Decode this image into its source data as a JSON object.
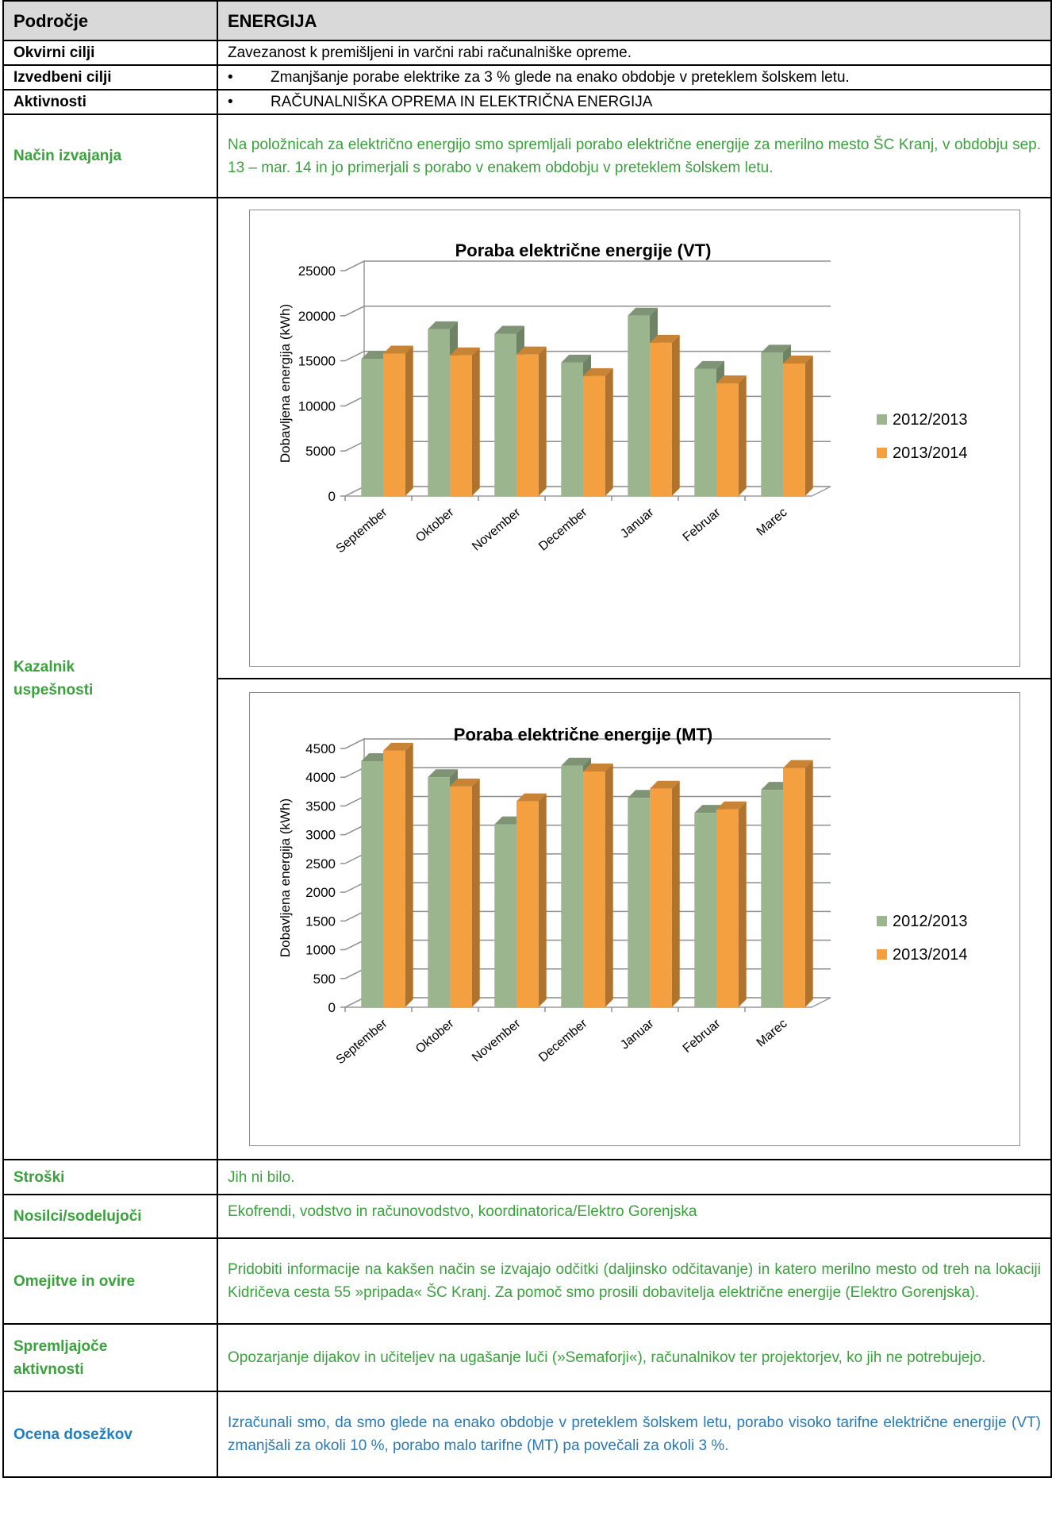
{
  "header": {
    "col1": "Področje",
    "col2": "ENERGIJA"
  },
  "rows": {
    "okvirni": {
      "label": "Okvirni cilji",
      "text": "Zavezanost k premišljeni in varčni rabi računalniške opreme."
    },
    "izvedbeni": {
      "label": "Izvedbeni cilji",
      "bullet": "•",
      "text": "Zmanjšanje porabe elektrike za 3 % glede na enako obdobje v preteklem šolskem letu."
    },
    "aktivnosti": {
      "label": "Aktivnosti",
      "bullet": "•",
      "text": "RAČUNALNIŠKA OPREMA IN ELEKTRIČNA ENERGIJA"
    },
    "nacin": {
      "label": "Način izvajanja",
      "text": "Na položnicah za električno energijo smo spremljali porabo električne energije za merilno mesto ŠC Kranj, v obdobju sep. 13 – mar. 14 in jo primerjali s porabo v enakem obdobju v preteklem šolskem letu."
    },
    "kazalnik": {
      "label_line1": "Kazalnik",
      "label_line2": "uspešnosti"
    },
    "stroski": {
      "label": "Stroški",
      "text": "Jih ni bilo."
    },
    "nosilci": {
      "label": "Nosilci/sodelujoči",
      "text": "Ekofrendi, vodstvo in računovodstvo, koordinatorica/Elektro Gorenjska"
    },
    "omejitve": {
      "label": "Omejitve in ovire",
      "text": "Pridobiti informacije na kakšen način se izvajajo odčitki (daljinsko odčitavanje) in katero merilno mesto od treh na lokaciji Kidričeva cesta 55 »pripada« ŠC Kranj. Za pomoč smo prosili dobavitelja električne energije (Elektro Gorenjska)."
    },
    "spremljajoce": {
      "label_line1": "Spremljajoče",
      "label_line2": "aktivnosti",
      "text": "Opozarjanje dijakov in učiteljev na ugašanje luči (»Semaforji«), računalnikov ter projektorjev, ko jih ne potrebujejo."
    },
    "ocena": {
      "label": "Ocena dosežkov",
      "text": "Izračunali smo, da smo glede na enako obdobje v preteklem šolskem letu, porabo visoko tarifne električne energije (VT) zmanjšali za okoli 10 %, porabo malo tarifne (MT) pa povečali za okoli 3 %."
    }
  },
  "colors": {
    "series1": "#9bb58e",
    "series2": "#f4a040",
    "label_green": "#3aa23c",
    "label_blue": "#1f7fc4",
    "header_bg": "#d9d9d9"
  },
  "chart_data": [
    {
      "type": "bar",
      "title": "Poraba električne energije (VT)",
      "ylabel": "Dobavljena energija (kWh)",
      "xlabel": "",
      "categories": [
        "September",
        "Oktober",
        "November",
        "December",
        "Januar",
        "Februar",
        "Marec"
      ],
      "series": [
        {
          "name": "2012/2013",
          "values": [
            15200,
            18500,
            18000,
            14800,
            20000,
            14100,
            15900
          ]
        },
        {
          "name": "2013/2014",
          "values": [
            15800,
            15600,
            15700,
            13300,
            17000,
            12500,
            14700
          ]
        }
      ],
      "ylim": [
        0,
        25000
      ],
      "yticks": [
        0,
        5000,
        10000,
        15000,
        20000,
        25000
      ],
      "grid": true,
      "legend": "right",
      "style": "3d"
    },
    {
      "type": "bar",
      "title": "Poraba električne energije (MT)",
      "ylabel": "Dobavljena energija (kWh)",
      "xlabel": "",
      "categories": [
        "September",
        "Oktober",
        "November",
        "December",
        "Januar",
        "Februar",
        "Marec"
      ],
      "series": [
        {
          "name": "2012/2013",
          "values": [
            4280,
            4000,
            3180,
            4200,
            3640,
            3380,
            3780
          ]
        },
        {
          "name": "2013/2014",
          "values": [
            4460,
            3840,
            3580,
            4100,
            3800,
            3440,
            4160
          ]
        }
      ],
      "ylim": [
        0,
        4500
      ],
      "yticks": [
        0,
        500,
        1000,
        1500,
        2000,
        2500,
        3000,
        3500,
        4000,
        4500
      ],
      "grid": true,
      "legend": "right",
      "style": "3d"
    }
  ]
}
